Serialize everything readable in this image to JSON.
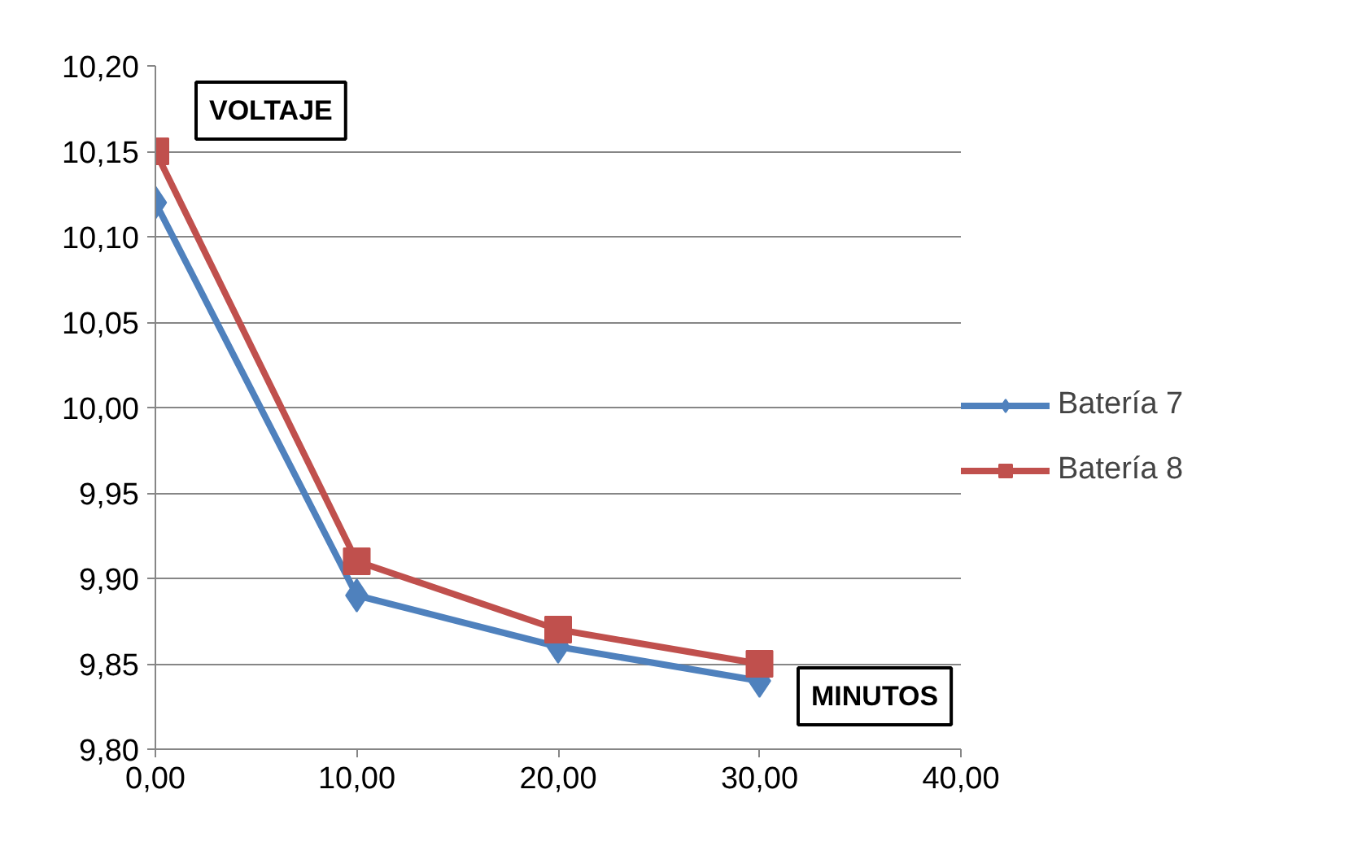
{
  "chart_data": {
    "type": "line",
    "xlabel": "MINUTOS",
    "ylabel": "VOLTAJE",
    "x": [
      0,
      10,
      20,
      30
    ],
    "series": [
      {
        "name": "Batería 7",
        "color": "#4f81bd",
        "marker": "diamond",
        "values": [
          10.12,
          9.89,
          9.86,
          9.84
        ]
      },
      {
        "name": "Batería 8",
        "color": "#c0504d",
        "marker": "square",
        "values": [
          10.15,
          9.91,
          9.87,
          9.85
        ]
      }
    ],
    "xlim": [
      0,
      40
    ],
    "ylim": [
      9.8,
      10.2
    ],
    "xticks": [
      {
        "value": 0,
        "label": "0,00"
      },
      {
        "value": 10,
        "label": "10,00"
      },
      {
        "value": 20,
        "label": "20,00"
      },
      {
        "value": 30,
        "label": "30,00"
      },
      {
        "value": 40,
        "label": "40,00"
      }
    ],
    "yticks": [
      {
        "value": 9.8,
        "label": "9,80"
      },
      {
        "value": 9.85,
        "label": "9,85"
      },
      {
        "value": 9.9,
        "label": "9,90"
      },
      {
        "value": 9.95,
        "label": "9,95"
      },
      {
        "value": 10.0,
        "label": "10,00"
      },
      {
        "value": 10.05,
        "label": "10,05"
      },
      {
        "value": 10.1,
        "label": "10,10"
      },
      {
        "value": 10.15,
        "label": "10,15"
      },
      {
        "value": 10.2,
        "label": "10,20"
      }
    ],
    "grid": "y",
    "legend": "right",
    "line_style": "solid"
  }
}
